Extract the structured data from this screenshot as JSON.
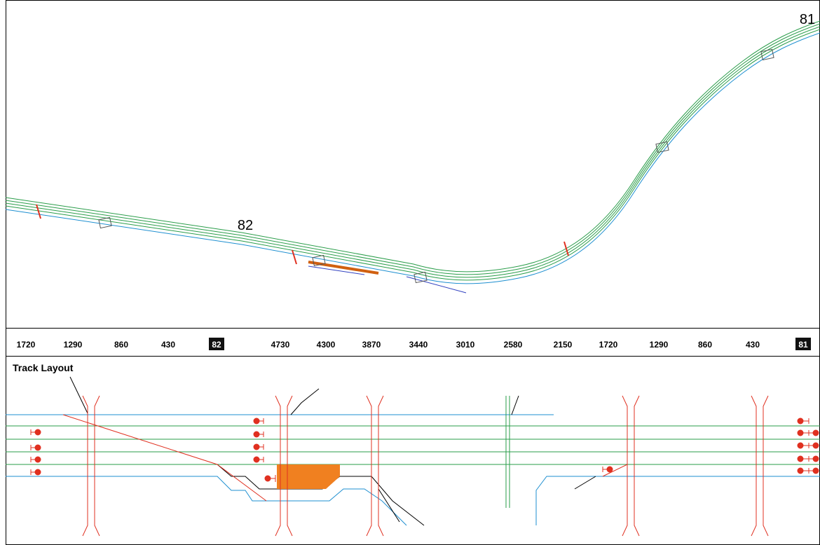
{
  "map_labels": [
    "82",
    "81"
  ],
  "ruler": [
    {
      "text": "1720"
    },
    {
      "text": "1290"
    },
    {
      "text": "860"
    },
    {
      "text": "430"
    },
    {
      "text": "82",
      "boxed": true
    },
    {
      "text": "4730"
    },
    {
      "text": "4300"
    },
    {
      "text": "3870"
    },
    {
      "text": "3440"
    },
    {
      "text": "3010"
    },
    {
      "text": "2580"
    },
    {
      "text": "2150"
    },
    {
      "text": "1720"
    },
    {
      "text": "1290"
    },
    {
      "text": "860"
    },
    {
      "text": "430"
    },
    {
      "text": "81",
      "boxed": true
    }
  ],
  "section_title": "Track Layout"
}
